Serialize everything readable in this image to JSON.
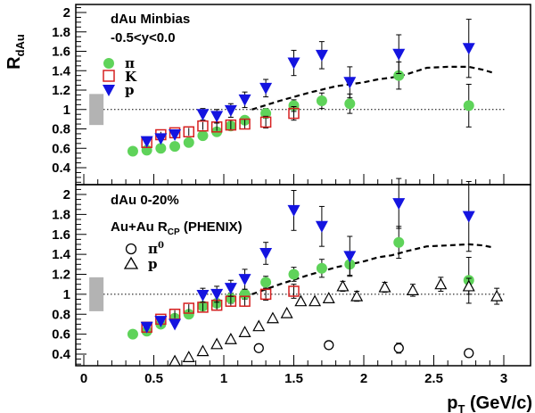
{
  "chart_data": [
    {
      "type": "scatter",
      "panel": "top",
      "panel_text": [
        "dAu Minbias",
        "-0.5<y<0.0"
      ],
      "ylabel": "R",
      "ylabel_sub": "dAu",
      "xlabel": "",
      "xlim": [
        -0.3,
        3.1
      ],
      "ylim": [
        0.2,
        2.1
      ],
      "xticks": [
        "0",
        "0.5",
        "1",
        "1.5",
        "2",
        "2.5",
        "3"
      ],
      "yticks": [
        "0.4",
        "0.6",
        "0.8",
        "1",
        "1.2",
        "1.4",
        "1.6",
        "1.8",
        "2"
      ],
      "reference_line": 1.0,
      "norm_box": {
        "x": 0.09,
        "ylow": 0.84,
        "yhigh": 1.16
      },
      "legend": [
        {
          "label": "π",
          "marker": "circle",
          "color": "#5fd35a"
        },
        {
          "label": "K",
          "marker": "open-square",
          "color": "#d62020"
        },
        {
          "label": "p",
          "marker": "down-triangle",
          "color": "#1414e0"
        }
      ],
      "series": [
        {
          "name": "π",
          "marker": "circle",
          "color": "#5fd35a",
          "points": [
            {
              "x": 0.35,
              "y": 0.57,
              "err": 0.02
            },
            {
              "x": 0.45,
              "y": 0.58,
              "err": 0.02
            },
            {
              "x": 0.55,
              "y": 0.6,
              "err": 0.02
            },
            {
              "x": 0.65,
              "y": 0.62,
              "err": 0.02
            },
            {
              "x": 0.75,
              "y": 0.66,
              "err": 0.03
            },
            {
              "x": 0.85,
              "y": 0.73,
              "err": 0.03
            },
            {
              "x": 0.95,
              "y": 0.77,
              "err": 0.03
            },
            {
              "x": 1.05,
              "y": 0.83,
              "err": 0.03
            },
            {
              "x": 1.15,
              "y": 0.89,
              "err": 0.04
            },
            {
              "x": 1.3,
              "y": 0.96,
              "err": 0.05
            },
            {
              "x": 1.5,
              "y": 1.04,
              "err": 0.06
            },
            {
              "x": 1.7,
              "y": 1.09,
              "err": 0.08
            },
            {
              "x": 1.9,
              "y": 1.06,
              "err": 0.1
            },
            {
              "x": 2.25,
              "y": 1.35,
              "err": 0.14
            },
            {
              "x": 2.75,
              "y": 1.04,
              "err": 0.22
            }
          ]
        },
        {
          "name": "K",
          "marker": "open-square",
          "color": "#d62020",
          "points": [
            {
              "x": 0.45,
              "y": 0.66,
              "err": 0.03
            },
            {
              "x": 0.55,
              "y": 0.74,
              "err": 0.03
            },
            {
              "x": 0.65,
              "y": 0.76,
              "err": 0.03
            },
            {
              "x": 0.75,
              "y": 0.77,
              "err": 0.04
            },
            {
              "x": 0.85,
              "y": 0.83,
              "err": 0.04
            },
            {
              "x": 0.95,
              "y": 0.82,
              "err": 0.04
            },
            {
              "x": 1.05,
              "y": 0.84,
              "err": 0.05
            },
            {
              "x": 1.15,
              "y": 0.85,
              "err": 0.05
            },
            {
              "x": 1.3,
              "y": 0.87,
              "err": 0.06
            },
            {
              "x": 1.5,
              "y": 0.96,
              "err": 0.07
            }
          ]
        },
        {
          "name": "p",
          "marker": "down-triangle",
          "color": "#1414e0",
          "points": [
            {
              "x": 0.45,
              "y": 0.67,
              "err": 0.03
            },
            {
              "x": 0.55,
              "y": 0.7,
              "err": 0.03
            },
            {
              "x": 0.65,
              "y": 0.74,
              "err": 0.04
            },
            {
              "x": 0.85,
              "y": 0.95,
              "err": 0.06
            },
            {
              "x": 0.95,
              "y": 0.93,
              "err": 0.07
            },
            {
              "x": 1.05,
              "y": 0.99,
              "err": 0.07
            },
            {
              "x": 1.15,
              "y": 1.1,
              "err": 0.08
            },
            {
              "x": 1.3,
              "y": 1.22,
              "err": 0.09
            },
            {
              "x": 1.5,
              "y": 1.48,
              "err": 0.13
            },
            {
              "x": 1.7,
              "y": 1.56,
              "err": 0.14
            },
            {
              "x": 1.9,
              "y": 1.28,
              "err": 0.16
            },
            {
              "x": 2.25,
              "y": 1.57,
              "err": 0.2
            },
            {
              "x": 2.75,
              "y": 1.63,
              "err": 0.3
            }
          ]
        }
      ],
      "dashed_curve": [
        [
          1.2,
          1.0
        ],
        [
          1.4,
          1.09
        ],
        [
          1.6,
          1.17
        ],
        [
          1.8,
          1.24
        ],
        [
          2.0,
          1.28
        ],
        [
          2.1,
          1.31
        ],
        [
          2.2,
          1.33
        ],
        [
          2.3,
          1.36
        ],
        [
          2.45,
          1.43
        ],
        [
          2.6,
          1.44
        ],
        [
          2.75,
          1.44
        ],
        [
          2.85,
          1.41
        ],
        [
          2.92,
          1.38
        ]
      ]
    },
    {
      "type": "scatter",
      "panel": "bottom",
      "panel_text": [
        "dAu 0-20%"
      ],
      "legend_title": "Au+Au R",
      "legend_title_sub": "CP",
      "legend_title_suffix": " (PHENIX)",
      "xlabel": "p",
      "xlabel_sub": "T",
      "xlabel_suffix": " (GeV/c)",
      "xlim": [
        -0.3,
        3.1
      ],
      "ylim": [
        0.2,
        2.1
      ],
      "xticks": [
        "0",
        "0.5",
        "1",
        "1.5",
        "2",
        "2.5",
        "3"
      ],
      "yticks": [
        "0.4",
        "0.6",
        "0.8",
        "1",
        "1.2",
        "1.4",
        "1.6",
        "1.8",
        "2"
      ],
      "reference_line": 1.0,
      "norm_box": {
        "x": 0.09,
        "ylow": 0.83,
        "yhigh": 1.17
      },
      "legend": [
        {
          "label": "π",
          "label_sup": "0",
          "marker": "open-circle",
          "color": "#000000"
        },
        {
          "label": "p",
          "marker": "open-triangle",
          "color": "#000000"
        }
      ],
      "series": [
        {
          "name": "π",
          "marker": "circle",
          "color": "#5fd35a",
          "points": [
            {
              "x": 0.35,
              "y": 0.6,
              "err": 0.02
            },
            {
              "x": 0.45,
              "y": 0.63,
              "err": 0.02
            },
            {
              "x": 0.55,
              "y": 0.7,
              "err": 0.03
            },
            {
              "x": 0.65,
              "y": 0.76,
              "err": 0.03
            },
            {
              "x": 0.75,
              "y": 0.8,
              "err": 0.03
            },
            {
              "x": 0.85,
              "y": 0.88,
              "err": 0.04
            },
            {
              "x": 0.95,
              "y": 0.91,
              "err": 0.04
            },
            {
              "x": 1.05,
              "y": 0.96,
              "err": 0.05
            },
            {
              "x": 1.15,
              "y": 1.0,
              "err": 0.05
            },
            {
              "x": 1.3,
              "y": 1.12,
              "err": 0.06
            },
            {
              "x": 1.5,
              "y": 1.2,
              "err": 0.07
            },
            {
              "x": 1.7,
              "y": 1.26,
              "err": 0.09
            },
            {
              "x": 1.9,
              "y": 1.3,
              "err": 0.11
            },
            {
              "x": 2.25,
              "y": 1.52,
              "err": 0.16
            },
            {
              "x": 2.75,
              "y": 1.14,
              "err": 0.23
            }
          ]
        },
        {
          "name": "K",
          "marker": "open-square",
          "color": "#d62020",
          "points": [
            {
              "x": 0.45,
              "y": 0.67,
              "err": 0.03
            },
            {
              "x": 0.55,
              "y": 0.75,
              "err": 0.03
            },
            {
              "x": 0.65,
              "y": 0.8,
              "err": 0.04
            },
            {
              "x": 0.75,
              "y": 0.86,
              "err": 0.04
            },
            {
              "x": 0.85,
              "y": 0.87,
              "err": 0.04
            },
            {
              "x": 0.95,
              "y": 0.89,
              "err": 0.05
            },
            {
              "x": 1.05,
              "y": 0.93,
              "err": 0.05
            },
            {
              "x": 1.15,
              "y": 0.93,
              "err": 0.05
            },
            {
              "x": 1.3,
              "y": 1.0,
              "err": 0.06
            },
            {
              "x": 1.5,
              "y": 1.03,
              "err": 0.07
            }
          ]
        },
        {
          "name": "p",
          "marker": "down-triangle",
          "color": "#1414e0",
          "points": [
            {
              "x": 0.45,
              "y": 0.67,
              "err": 0.03
            },
            {
              "x": 0.55,
              "y": 0.73,
              "err": 0.04
            },
            {
              "x": 0.65,
              "y": 0.7,
              "err": 0.04
            },
            {
              "x": 0.85,
              "y": 0.99,
              "err": 0.07
            },
            {
              "x": 0.95,
              "y": 1.0,
              "err": 0.08
            },
            {
              "x": 1.05,
              "y": 1.06,
              "err": 0.08
            },
            {
              "x": 1.15,
              "y": 1.15,
              "err": 0.1
            },
            {
              "x": 1.3,
              "y": 1.41,
              "err": 0.11
            },
            {
              "x": 1.5,
              "y": 1.84,
              "err": 0.2
            },
            {
              "x": 1.7,
              "y": 1.68,
              "err": 0.2
            },
            {
              "x": 1.9,
              "y": 1.38,
              "err": 0.2
            },
            {
              "x": 2.25,
              "y": 1.91,
              "err": 0.25
            },
            {
              "x": 2.75,
              "y": 1.78,
              "err": 0.35
            }
          ]
        },
        {
          "name": "π0",
          "marker": "open-circle",
          "color": "#000000",
          "points": [
            {
              "x": 1.25,
              "y": 0.46,
              "err": 0.04
            },
            {
              "x": 1.75,
              "y": 0.49,
              "err": 0.04
            },
            {
              "x": 2.25,
              "y": 0.46,
              "err": 0.05
            },
            {
              "x": 2.75,
              "y": 0.41,
              "err": 0.04
            }
          ]
        },
        {
          "name": "p",
          "marker": "open-triangle",
          "color": "#000000",
          "points": [
            {
              "x": 0.65,
              "y": 0.33,
              "err": 0.02
            },
            {
              "x": 0.75,
              "y": 0.37,
              "err": 0.02
            },
            {
              "x": 0.85,
              "y": 0.43,
              "err": 0.02
            },
            {
              "x": 0.95,
              "y": 0.5,
              "err": 0.02
            },
            {
              "x": 1.05,
              "y": 0.55,
              "err": 0.02
            },
            {
              "x": 1.15,
              "y": 0.62,
              "err": 0.03
            },
            {
              "x": 1.25,
              "y": 0.68,
              "err": 0.03
            },
            {
              "x": 1.35,
              "y": 0.76,
              "err": 0.03
            },
            {
              "x": 1.45,
              "y": 0.81,
              "err": 0.03
            },
            {
              "x": 1.55,
              "y": 0.93,
              "err": 0.04
            },
            {
              "x": 1.65,
              "y": 0.93,
              "err": 0.04
            },
            {
              "x": 1.75,
              "y": 0.96,
              "err": 0.04
            },
            {
              "x": 1.85,
              "y": 1.08,
              "err": 0.05
            },
            {
              "x": 1.95,
              "y": 0.98,
              "err": 0.05
            },
            {
              "x": 2.15,
              "y": 1.07,
              "err": 0.05
            },
            {
              "x": 2.35,
              "y": 1.04,
              "err": 0.06
            },
            {
              "x": 2.55,
              "y": 1.1,
              "err": 0.07
            },
            {
              "x": 2.75,
              "y": 1.08,
              "err": 0.08
            },
            {
              "x": 2.95,
              "y": 0.98,
              "err": 0.08
            }
          ]
        }
      ],
      "dashed_curve": [
        [
          1.2,
          1.0
        ],
        [
          1.4,
          1.1
        ],
        [
          1.6,
          1.19
        ],
        [
          1.8,
          1.27
        ],
        [
          2.0,
          1.33
        ],
        [
          2.1,
          1.37
        ],
        [
          2.2,
          1.39
        ],
        [
          2.3,
          1.43
        ],
        [
          2.45,
          1.48
        ],
        [
          2.6,
          1.49
        ],
        [
          2.75,
          1.5
        ],
        [
          2.85,
          1.49
        ],
        [
          2.92,
          1.47
        ]
      ]
    }
  ]
}
